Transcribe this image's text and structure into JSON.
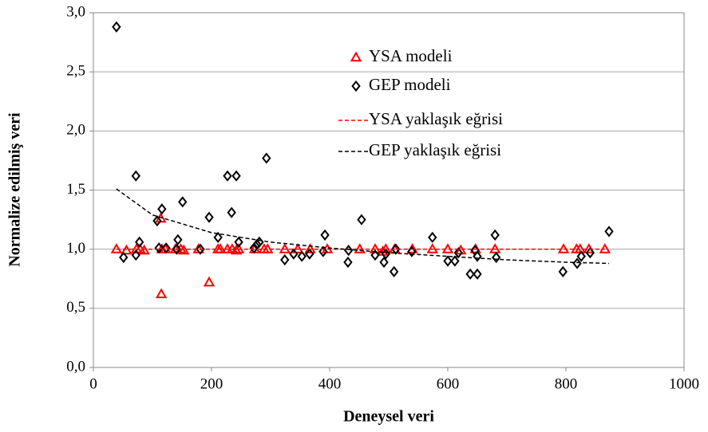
{
  "chart_data": {
    "type": "scatter",
    "x_label": "Deneysel veri",
    "y_label": "Normalize edilmiş veri",
    "xlim": [
      0,
      1000
    ],
    "xticks": [
      0,
      200,
      400,
      600,
      800,
      1000
    ],
    "ylim": [
      0,
      3
    ],
    "yticks": [
      {
        "value": 0,
        "label": "0,0"
      },
      {
        "value": 0.5,
        "label": "0,5"
      },
      {
        "value": 1,
        "label": "1,0"
      },
      {
        "value": 1.5,
        "label": "1,5"
      },
      {
        "value": 2,
        "label": "2,0"
      },
      {
        "value": 2.5,
        "label": "2,5"
      },
      {
        "value": 3,
        "label": "3,0"
      }
    ],
    "grid": true,
    "series": [
      {
        "name": "YSA modeli",
        "color": "#ff0000",
        "marker": "triangle",
        "x": [
          39,
          56,
          73,
          79,
          86,
          115,
          114,
          116,
          122,
          139,
          148,
          153,
          178,
          196,
          211,
          215,
          227,
          235,
          242,
          246,
          273,
          289,
          295,
          324,
          346,
          367,
          396,
          451,
          477,
          490,
          495,
          510,
          540,
          574,
          600,
          622,
          647,
          680,
          796,
          818,
          824,
          839,
          866
        ],
        "values": [
          1.0,
          0.99,
          1.0,
          1.0,
          0.99,
          0.62,
          1.26,
          1.0,
          1.0,
          1.0,
          1.0,
          0.99,
          1.0,
          0.72,
          1.0,
          1.0,
          1.0,
          1.0,
          0.99,
          1.0,
          1.0,
          1.0,
          1.0,
          1.0,
          1.0,
          1.0,
          1.0,
          1.0,
          1.0,
          0.98,
          1.0,
          1.0,
          1.0,
          1.0,
          1.0,
          0.99,
          1.0,
          1.0,
          1.0,
          1.0,
          1.0,
          1.0,
          1.0
        ]
      },
      {
        "name": "GEP modeli",
        "color": "#000000",
        "marker": "diamond",
        "x": [
          39,
          51,
          72,
          78,
          72,
          108,
          116,
          111,
          123,
          151,
          143,
          141,
          181,
          196,
          211,
          227,
          242,
          234,
          246,
          272,
          281,
          277,
          293,
          324,
          339,
          353,
          366,
          392,
          389,
          431,
          432,
          454,
          477,
          492,
          495,
          509,
          512,
          539,
          574,
          600,
          612,
          618,
          638,
          650,
          646,
          650,
          680,
          682,
          795,
          819,
          826,
          841,
          873
        ],
        "values": [
          2.88,
          0.93,
          1.62,
          1.06,
          0.95,
          1.24,
          1.34,
          1.01,
          1.01,
          1.4,
          1.08,
          1.0,
          1.0,
          1.27,
          1.1,
          1.62,
          1.62,
          1.31,
          1.06,
          1.01,
          1.06,
          1.04,
          1.77,
          0.91,
          0.96,
          0.94,
          0.96,
          1.12,
          0.98,
          0.89,
          0.99,
          1.25,
          0.95,
          0.89,
          0.96,
          0.81,
          1.0,
          0.98,
          1.1,
          0.9,
          0.9,
          0.97,
          0.79,
          0.79,
          0.99,
          0.94,
          1.12,
          0.93,
          0.81,
          0.88,
          0.94,
          0.97,
          1.15
        ]
      },
      {
        "name": "YSA yaklaşık eğrisi",
        "color": "#ff0000",
        "line": "dashed",
        "x": [
          39,
          866
        ],
        "values": [
          1.0,
          1.0
        ]
      },
      {
        "name": "GEP yaklaşık eğrisi",
        "color": "#000000",
        "line": "dashed",
        "x": [
          39,
          100,
          200,
          300,
          400,
          500,
          600,
          700,
          800,
          873
        ],
        "values": [
          1.51,
          1.29,
          1.14,
          1.06,
          1.01,
          0.97,
          0.94,
          0.91,
          0.89,
          0.88
        ]
      }
    ]
  }
}
